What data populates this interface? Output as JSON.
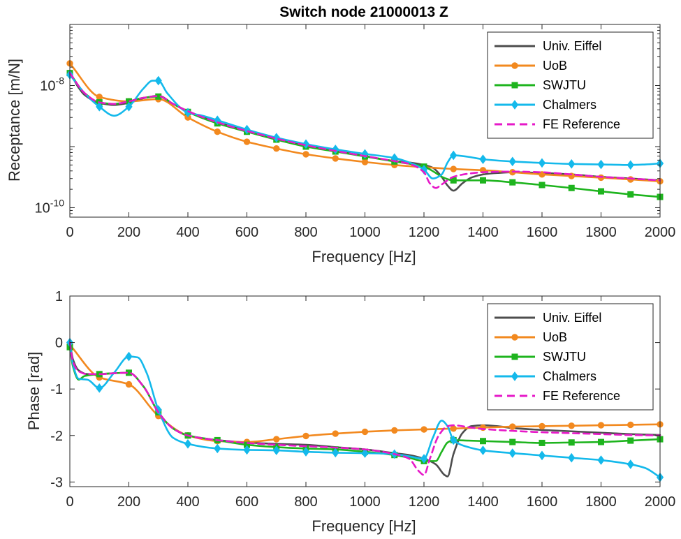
{
  "chart_data": [
    {
      "type": "line",
      "title": "Switch node 21000013 Z",
      "xlabel": "Frequency [Hz]",
      "ylabel": "Receptance [m/N]",
      "xlim": [
        0,
        2000
      ],
      "ylim": [
        7e-11,
        1e-07
      ],
      "yscale": "log",
      "xticks": [
        0,
        200,
        400,
        600,
        800,
        1000,
        1200,
        1400,
        1600,
        1800,
        2000
      ],
      "xtick_labels": [
        "0",
        "200",
        "400",
        "600",
        "800",
        "1000",
        "1200",
        "1400",
        "1600",
        "1800",
        "2000"
      ],
      "yticks": [
        1e-10,
        1e-08
      ],
      "ytick_labels": [
        {
          "base": "10",
          "exp": "-10"
        },
        {
          "base": "10",
          "exp": "-8"
        }
      ],
      "legend_position": "top-right",
      "series": [
        {
          "name": "Univ. Eiffel",
          "color": "#4d4d4d",
          "dash": "solid",
          "marker": "none",
          "x": [
            0,
            25,
            50,
            100,
            150,
            200,
            250,
            300,
            350,
            400,
            500,
            600,
            700,
            800,
            900,
            1000,
            1100,
            1150,
            1200,
            1230,
            1260,
            1280,
            1300,
            1330,
            1360,
            1400,
            1450,
            1500,
            1600,
            1700,
            1800,
            1900,
            2000
          ],
          "y": [
            1.7e-08,
            1e-08,
            7e-09,
            5.2e-09,
            4.8e-09,
            5.2e-09,
            6.2e-09,
            6.8e-09,
            5e-09,
            3.8e-09,
            2.5e-09,
            1.8e-09,
            1.35e-09,
            1.05e-09,
            8.5e-10,
            7e-10,
            5.8e-10,
            5.5e-10,
            5e-10,
            4.5e-10,
            3.2e-10,
            2.3e-10,
            1.9e-10,
            2.5e-10,
            3.1e-10,
            3.5e-10,
            3.7e-10,
            3.8e-10,
            3.7e-10,
            3.5e-10,
            3.2e-10,
            3e-10,
            2.8e-10
          ]
        },
        {
          "name": "UoB",
          "color": "#f2891f",
          "dash": "solid",
          "marker": "circle",
          "x": [
            0,
            100,
            200,
            300,
            400,
            500,
            600,
            700,
            800,
            900,
            1000,
            1100,
            1200,
            1300,
            1400,
            1500,
            1600,
            1700,
            1800,
            1900,
            2000
          ],
          "y": [
            2.3e-08,
            6.5e-09,
            5.5e-09,
            6e-09,
            3e-09,
            1.75e-09,
            1.2e-09,
            9.3e-10,
            7.5e-10,
            6.4e-10,
            5.6e-10,
            5e-10,
            4.6e-10,
            4.3e-10,
            4.1e-10,
            3.8e-10,
            3.5e-10,
            3.3e-10,
            3.1e-10,
            2.9e-10,
            2.7e-10
          ]
        },
        {
          "name": "SWJTU",
          "color": "#1eb41e",
          "dash": "solid",
          "marker": "square",
          "x": [
            0,
            50,
            100,
            150,
            200,
            250,
            300,
            350,
            400,
            500,
            600,
            700,
            800,
            900,
            1000,
            1100,
            1200,
            1240,
            1260,
            1300,
            1400,
            1500,
            1600,
            1700,
            1800,
            1900,
            2000
          ],
          "y": [
            1.6e-08,
            7.5e-09,
            5.3e-09,
            5e-09,
            5.5e-09,
            6.3e-09,
            6.6e-09,
            5e-09,
            3.7e-09,
            2.4e-09,
            1.75e-09,
            1.3e-09,
            1e-09,
            8.3e-10,
            6.9e-10,
            5.7e-10,
            4.7e-10,
            3.7e-10,
            3.2e-10,
            2.8e-10,
            2.8e-10,
            2.6e-10,
            2.35e-10,
            2.1e-10,
            1.85e-10,
            1.65e-10,
            1.5e-10
          ]
        },
        {
          "name": "Chalmers",
          "color": "#14b9eb",
          "dash": "solid",
          "marker": "diamond",
          "x": [
            0,
            50,
            100,
            150,
            200,
            250,
            280,
            300,
            330,
            400,
            450,
            500,
            600,
            700,
            800,
            900,
            1000,
            1100,
            1150,
            1200,
            1230,
            1260,
            1280,
            1300,
            1350,
            1400,
            1500,
            1600,
            1700,
            1800,
            1900,
            1950,
            2000
          ],
          "y": [
            1.5e-08,
            7.5e-09,
            4.5e-09,
            3.2e-09,
            4.5e-09,
            9e-09,
            1.2e-08,
            1.2e-08,
            7.5e-09,
            3.6e-09,
            3.2e-09,
            2.7e-09,
            1.9e-09,
            1.4e-09,
            1.1e-09,
            9e-10,
            7.6e-10,
            6.5e-10,
            5.5e-10,
            4.2e-10,
            3e-10,
            3.5e-10,
            5.5e-10,
            7.2e-10,
            6.8e-10,
            6.2e-10,
            5.7e-10,
            5.4e-10,
            5.2e-10,
            5.1e-10,
            5e-10,
            5.1e-10,
            5.3e-10
          ]
        },
        {
          "name": "FE Reference",
          "color": "#e619c8",
          "dash": "dashed",
          "marker": "none",
          "x": [
            0,
            50,
            100,
            150,
            200,
            250,
            300,
            350,
            400,
            500,
            600,
            700,
            800,
            900,
            1000,
            1100,
            1150,
            1200,
            1220,
            1240,
            1260,
            1300,
            1350,
            1400,
            1500,
            1600,
            1700,
            1800,
            1900,
            2000
          ],
          "y": [
            1.6e-08,
            7.5e-09,
            5.3e-09,
            5e-09,
            5.5e-09,
            6.3e-09,
            6.7e-09,
            5e-09,
            3.8e-09,
            2.5e-09,
            1.8e-09,
            1.35e-09,
            1.05e-09,
            8.5e-10,
            7e-10,
            5.8e-10,
            5.2e-10,
            3.8e-10,
            2.5e-10,
            2.1e-10,
            2.4e-10,
            3.2e-10,
            3.6e-10,
            3.8e-10,
            3.9e-10,
            3.8e-10,
            3.5e-10,
            3.2e-10,
            3e-10,
            2.8e-10
          ]
        }
      ]
    },
    {
      "type": "line",
      "title": "",
      "xlabel": "Frequency [Hz]",
      "ylabel": "Phase [rad]",
      "xlim": [
        0,
        2000
      ],
      "ylim": [
        -3.1,
        1
      ],
      "yscale": "linear",
      "xticks": [
        0,
        200,
        400,
        600,
        800,
        1000,
        1200,
        1400,
        1600,
        1800,
        2000
      ],
      "xtick_labels": [
        "0",
        "200",
        "400",
        "600",
        "800",
        "1000",
        "1200",
        "1400",
        "1600",
        "1800",
        "2000"
      ],
      "yticks": [
        1,
        0,
        -1,
        -2,
        -3
      ],
      "ytick_labels": [
        "1",
        "0",
        "-1",
        "-2",
        "-3"
      ],
      "legend_position": "top-right",
      "series": [
        {
          "name": "Univ. Eiffel",
          "color": "#4d4d4d",
          "dash": "solid",
          "marker": "none",
          "x": [
            0,
            10,
            30,
            60,
            100,
            150,
            200,
            250,
            300,
            350,
            400,
            500,
            600,
            700,
            800,
            900,
            1000,
            1100,
            1150,
            1200,
            1240,
            1270,
            1280,
            1300,
            1330,
            1360,
            1400,
            1450,
            1500,
            1600,
            1700,
            1800,
            1900,
            2000
          ],
          "y": [
            0,
            -0.35,
            -0.6,
            -0.68,
            -0.68,
            -0.66,
            -0.65,
            -0.95,
            -1.5,
            -1.85,
            -2.0,
            -2.1,
            -2.15,
            -2.18,
            -2.2,
            -2.25,
            -2.3,
            -2.38,
            -2.42,
            -2.5,
            -2.62,
            -2.85,
            -2.88,
            -2.4,
            -1.95,
            -1.8,
            -1.78,
            -1.8,
            -1.84,
            -1.88,
            -1.91,
            -1.94,
            -1.97,
            -1.99
          ]
        },
        {
          "name": "UoB",
          "color": "#f2891f",
          "dash": "solid",
          "marker": "circle",
          "x": [
            0,
            100,
            200,
            300,
            400,
            500,
            600,
            700,
            800,
            900,
            1000,
            1100,
            1200,
            1300,
            1400,
            1500,
            1600,
            1700,
            1800,
            1900,
            2000
          ],
          "y": [
            -0.05,
            -0.75,
            -0.9,
            -1.58,
            -2.0,
            -2.12,
            -2.14,
            -2.08,
            -2.01,
            -1.96,
            -1.92,
            -1.89,
            -1.87,
            -1.85,
            -1.83,
            -1.81,
            -1.8,
            -1.79,
            -1.78,
            -1.77,
            -1.76
          ]
        },
        {
          "name": "SWJTU",
          "color": "#1eb41e",
          "dash": "solid",
          "marker": "square",
          "x": [
            0,
            10,
            30,
            50,
            100,
            150,
            200,
            250,
            300,
            350,
            400,
            500,
            600,
            700,
            800,
            900,
            1000,
            1100,
            1150,
            1200,
            1240,
            1260,
            1280,
            1300,
            1350,
            1400,
            1500,
            1600,
            1700,
            1800,
            1900,
            2000
          ],
          "y": [
            -0.1,
            -0.5,
            -0.8,
            -0.72,
            -0.68,
            -0.66,
            -0.65,
            -0.95,
            -1.5,
            -1.85,
            -2.0,
            -2.1,
            -2.2,
            -2.25,
            -2.28,
            -2.3,
            -2.35,
            -2.42,
            -2.48,
            -2.55,
            -2.55,
            -2.35,
            -2.15,
            -2.1,
            -2.11,
            -2.12,
            -2.14,
            -2.16,
            -2.15,
            -2.14,
            -2.11,
            -2.08
          ]
        },
        {
          "name": "Chalmers",
          "color": "#14b9eb",
          "dash": "solid",
          "marker": "diamond",
          "x": [
            0,
            10,
            30,
            60,
            100,
            150,
            200,
            230,
            260,
            300,
            350,
            400,
            500,
            600,
            700,
            800,
            900,
            1000,
            1100,
            1150,
            1200,
            1230,
            1260,
            1280,
            1300,
            1350,
            1400,
            1500,
            1600,
            1700,
            1800,
            1900,
            1950,
            2000
          ],
          "y": [
            0,
            -0.45,
            -0.78,
            -0.8,
            -0.98,
            -0.65,
            -0.3,
            -0.32,
            -0.65,
            -1.45,
            -2.05,
            -2.18,
            -2.28,
            -2.31,
            -2.32,
            -2.35,
            -2.37,
            -2.38,
            -2.4,
            -2.45,
            -2.5,
            -2.05,
            -1.68,
            -1.8,
            -2.1,
            -2.25,
            -2.32,
            -2.38,
            -2.43,
            -2.48,
            -2.53,
            -2.62,
            -2.7,
            -2.9
          ]
        },
        {
          "name": "FE Reference",
          "color": "#e619c8",
          "dash": "dashed",
          "marker": "none",
          "x": [
            0,
            10,
            30,
            60,
            100,
            150,
            200,
            250,
            300,
            350,
            400,
            500,
            600,
            700,
            800,
            900,
            1000,
            1100,
            1150,
            1180,
            1200,
            1220,
            1250,
            1280,
            1300,
            1350,
            1400,
            1500,
            1600,
            1700,
            1800,
            1900,
            2000
          ],
          "y": [
            0,
            -0.4,
            -0.62,
            -0.68,
            -0.68,
            -0.66,
            -0.65,
            -0.95,
            -1.5,
            -1.85,
            -2.0,
            -2.1,
            -2.16,
            -2.2,
            -2.23,
            -2.26,
            -2.3,
            -2.4,
            -2.5,
            -2.75,
            -2.85,
            -2.5,
            -2.0,
            -1.8,
            -1.78,
            -1.82,
            -1.86,
            -1.9,
            -1.93,
            -1.95,
            -1.97,
            -1.99,
            -2.0
          ]
        }
      ]
    }
  ]
}
